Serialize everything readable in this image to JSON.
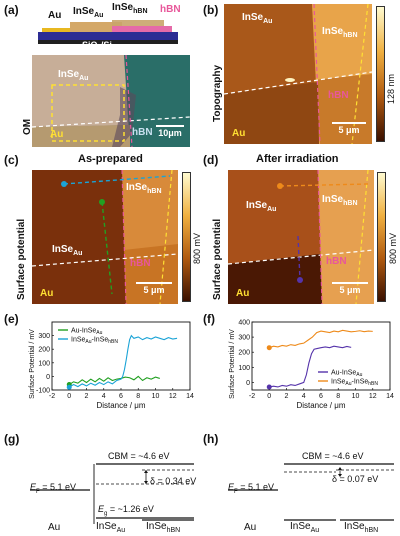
{
  "panels": {
    "a": {
      "label": "(a)",
      "schematic": {
        "au": "Au",
        "inse_au": "InSe",
        "inse_au_sub": "Au",
        "inse_hbn": "InSe",
        "inse_hbn_sub": "hBN",
        "hbn": "hBN",
        "substrate": "SiO",
        "substrate_sub": "2",
        "substrate_tail": "/Si"
      },
      "image": {
        "side_label": "OM",
        "inse_au": "InSe",
        "inse_au_sub": "Au",
        "au": "Au",
        "hbn": "hBN",
        "scale": "10μm"
      }
    },
    "b": {
      "label": "(b)",
      "side_label": "Topography",
      "inse_au": "InSe",
      "inse_au_sub": "Au",
      "inse_hbn": "InSe",
      "inse_hbn_sub": "hBN",
      "hbn": "hBN",
      "au": "Au",
      "scale": "5 μm",
      "colorbar": "128 nm"
    },
    "c": {
      "label": "(c)",
      "title": "As-prepared",
      "side_label": "Surface potential",
      "inse_au": "InSe",
      "inse_au_sub": "Au",
      "inse_hbn": "InSe",
      "inse_hbn_sub": "hBN",
      "hbn": "hBN",
      "au": "Au",
      "scale": "5 μm",
      "colorbar": "800 mV"
    },
    "d": {
      "label": "(d)",
      "title": "After irradiation",
      "side_label": "Surface potential",
      "inse_au": "InSe",
      "inse_au_sub": "Au",
      "inse_hbn": "InSe",
      "inse_hbn_sub": "hBN",
      "hbn": "hBN",
      "au": "Au",
      "scale": "5 μm",
      "colorbar": "800 mV"
    },
    "e": {
      "label": "(e)",
      "xlabel": "Distance / μm",
      "ylabel": "Surface Potential / mV",
      "legend": [
        {
          "text": "Au-InSe",
          "sub": "Au",
          "color": "#22a022"
        },
        {
          "text": "InSe",
          "sub": "Au",
          "tail": "-InSe",
          "tailsub": "hBN",
          "color": "#1aa3d6"
        }
      ],
      "xticks": [
        "-2",
        "0",
        "2",
        "4",
        "6",
        "8",
        "10",
        "12",
        "14"
      ],
      "yticks": [
        "-100",
        "0",
        "100",
        "200",
        "300"
      ]
    },
    "f": {
      "label": "(f)",
      "xlabel": "Distance / μm",
      "ylabel": "Surface Potential / mV",
      "legend": [
        {
          "text": "Au-InSe",
          "sub": "Au",
          "color": "#5533aa"
        },
        {
          "text": "InSe",
          "sub": "Au",
          "tail": "-InSe",
          "tailsub": "hBN",
          "color": "#ee8a1a"
        }
      ],
      "xticks": [
        "-2",
        "0",
        "2",
        "4",
        "6",
        "8",
        "10",
        "12",
        "14"
      ],
      "yticks": [
        "0",
        "100",
        "200",
        "300",
        "400"
      ]
    },
    "g": {
      "label": "(g)",
      "cbm": "CBM = ~4.6 eV",
      "ef": "E",
      "ef_sub": "F",
      "ef_val": " = 5.1 eV",
      "delta": "δ = 0.34 eV",
      "eg": "E",
      "eg_sub": "g",
      "eg_val": " = ~1.26 eV",
      "cols": [
        {
          "text": "Au"
        },
        {
          "text": "InSe",
          "sub": "Au"
        },
        {
          "text": "InSe",
          "sub": "hBN"
        }
      ]
    },
    "h": {
      "label": "(h)",
      "cbm": "CBM = ~4.6 eV",
      "ef": "E",
      "ef_sub": "F",
      "ef_val": " = 5.1 eV",
      "delta": "δ = 0.07 eV",
      "cols": [
        {
          "text": "Au"
        },
        {
          "text": "InSe",
          "sub": "Au"
        },
        {
          "text": "InSe",
          "sub": "hBN"
        }
      ]
    }
  },
  "chart_data": [
    {
      "type": "line",
      "panel": "e",
      "xlabel": "Distance / μm",
      "ylabel": "Surface Potential / mV",
      "xlim": [
        -2,
        14
      ],
      "ylim": [
        -100,
        400
      ],
      "series": [
        {
          "name": "Au-InSeAu",
          "color": "#22a022",
          "x": [
            0,
            0.5,
            1,
            1.5,
            2,
            2.5,
            3,
            3.5,
            4,
            4.5,
            5,
            5.5,
            6,
            6.5,
            7,
            7.5,
            8,
            8.5,
            9,
            9.5,
            10,
            10.5
          ],
          "y": [
            -60,
            -40,
            -50,
            -25,
            -45,
            -20,
            -40,
            -15,
            -35,
            -10,
            -30,
            -20,
            -15,
            -5,
            -10,
            -25,
            0,
            -30,
            -10,
            -20,
            -5,
            -15
          ]
        },
        {
          "name": "InSeAu-InSehBN",
          "color": "#1aa3d6",
          "x": [
            0,
            0.5,
            1,
            1.5,
            2,
            2.5,
            3,
            3.5,
            4,
            4.5,
            5,
            5.5,
            6,
            6.2,
            6.4,
            6.6,
            6.8,
            7,
            7.2,
            7.5,
            8,
            8.5,
            9,
            9.5,
            10,
            10.5,
            11,
            11.5,
            12,
            12.5
          ],
          "y": [
            -80,
            -60,
            -75,
            -55,
            -70,
            -50,
            -65,
            -45,
            -60,
            -40,
            -55,
            -30,
            -20,
            0,
            50,
            120,
            200,
            270,
            300,
            280,
            290,
            270,
            285,
            275,
            290,
            280,
            270,
            285,
            275,
            280
          ]
        }
      ]
    },
    {
      "type": "line",
      "panel": "f",
      "xlabel": "Distance / μm",
      "ylabel": "Surface Potential / mV",
      "xlim": [
        -2,
        14
      ],
      "ylim": [
        -50,
        400
      ],
      "series": [
        {
          "name": "Au-InSeAu",
          "color": "#5533aa",
          "x": [
            0,
            0.5,
            1,
            1.5,
            2,
            2.5,
            3,
            3.5,
            4,
            4.3,
            4.6,
            4.9,
            5.2,
            5.6,
            6,
            6.5,
            7,
            7.5,
            8,
            8.5,
            9,
            9.5
          ],
          "y": [
            -30,
            -25,
            -30,
            -20,
            -25,
            -15,
            -20,
            -10,
            0,
            50,
            130,
            190,
            220,
            225,
            230,
            235,
            230,
            240,
            235,
            230,
            238,
            232
          ]
        },
        {
          "name": "InSeAu-InSehBN",
          "color": "#ee8a1a",
          "x": [
            0,
            0.5,
            1,
            1.5,
            2,
            2.5,
            3,
            3.5,
            4,
            4.5,
            5,
            5.5,
            6,
            6.5,
            7,
            7.5,
            8,
            8.5,
            9,
            9.5,
            10,
            10.5,
            11,
            11.5,
            12
          ],
          "y": [
            230,
            240,
            235,
            245,
            240,
            250,
            245,
            255,
            260,
            280,
            300,
            330,
            340,
            335,
            330,
            340,
            335,
            345,
            340,
            335,
            338,
            342,
            336,
            340,
            338
          ]
        }
      ]
    }
  ]
}
